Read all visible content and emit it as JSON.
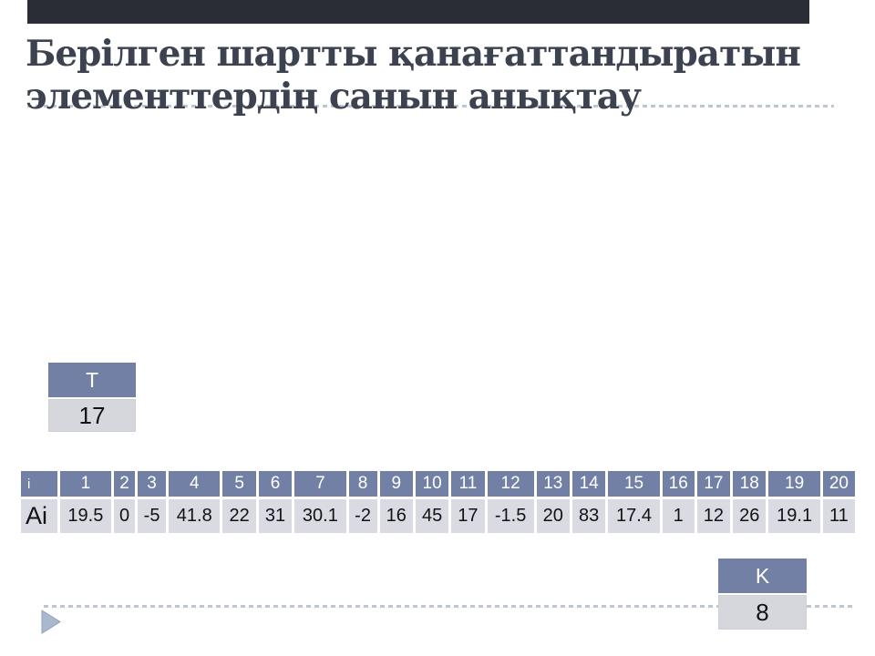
{
  "slide": {
    "title": "Берілген шартты қанағаттандыратын элементтердің санын анықтау"
  },
  "t_box": {
    "label": "T",
    "value": "17"
  },
  "k_box": {
    "label": "K",
    "value": "8"
  },
  "data_table": {
    "index_label": "i",
    "values_label": "Ai",
    "indices": [
      "1",
      "2",
      "3",
      "4",
      "5",
      "6",
      "7",
      "8",
      "9",
      "10",
      "11",
      "12",
      "13",
      "14",
      "15",
      "16",
      "17",
      "18",
      "19",
      "20"
    ],
    "values": [
      "19.5",
      "0",
      "-5",
      "41.8",
      "22",
      "31",
      "30.1",
      "-2",
      "16",
      "45",
      "17",
      "-1.5",
      "20",
      "83",
      "17.4",
      "1",
      "12",
      "26",
      "19.1",
      "11"
    ]
  },
  "colors": {
    "header_bg": "#7380a5",
    "cell_bg": "#d9dae2",
    "accent_bar": "#2b2d36",
    "title_text": "#3c4250",
    "dotted_line": "#bdc7d4",
    "arrow": "#a9b8cc"
  }
}
